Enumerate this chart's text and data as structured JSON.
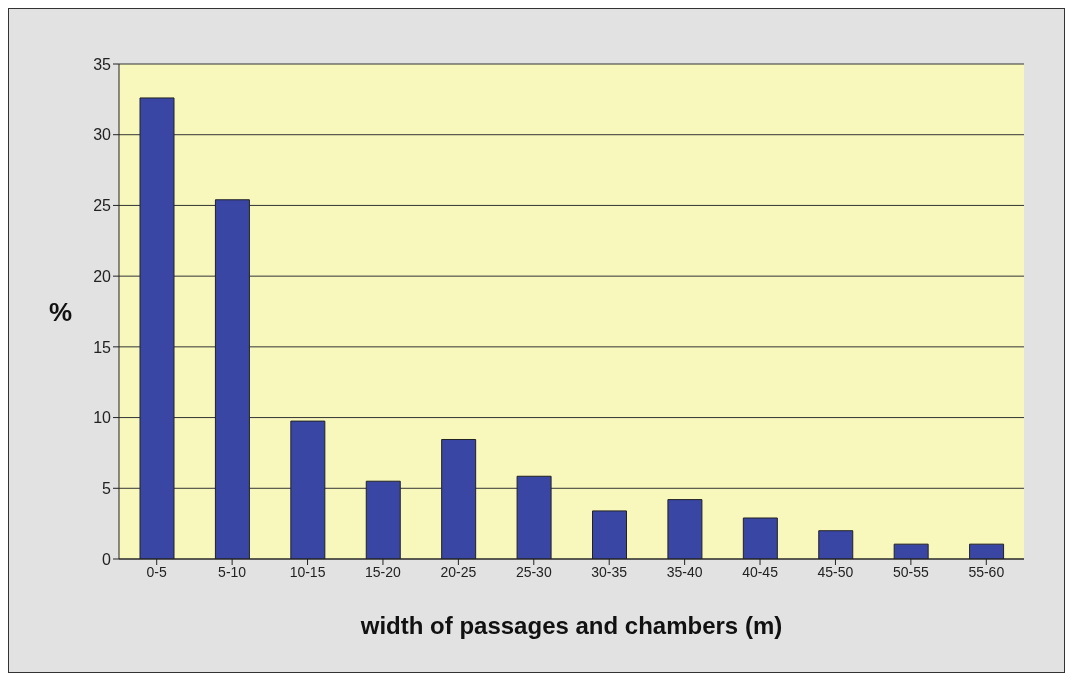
{
  "chart_data": {
    "type": "bar",
    "categories": [
      "0-5",
      "5-10",
      "10-15",
      "15-20",
      "20-25",
      "25-30",
      "30-35",
      "35-40",
      "40-45",
      "45-50",
      "50-55",
      "55-60"
    ],
    "values": [
      32.6,
      25.4,
      9.75,
      5.5,
      8.45,
      5.85,
      3.4,
      4.2,
      2.9,
      2.0,
      1.05,
      1.05
    ],
    "color": "#3a46a4",
    "xlabel": "width of passages and chambers  (m)",
    "ylabel": "%",
    "ylim": [
      0,
      35
    ],
    "yticks": [
      0,
      5,
      10,
      15,
      20,
      25,
      30,
      35
    ],
    "grid": "y"
  }
}
